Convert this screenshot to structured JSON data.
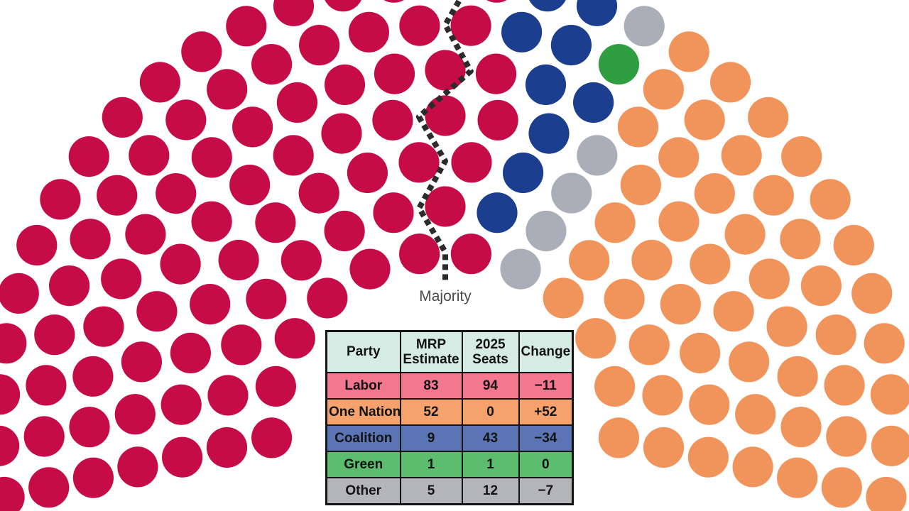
{
  "page": {
    "background_color": "#ffffff"
  },
  "chart_data": {
    "type": "pie",
    "variant": "parliament_hemicycle_seat_plot",
    "title": "",
    "total_seats": 150,
    "majority_label": "Majority",
    "legend_position": "none",
    "grid": false,
    "order_left_to_right": [
      "Labor",
      "Coalition",
      "Green",
      "Other",
      "One Nation"
    ],
    "series": [
      {
        "name": "Labor",
        "seats": 83,
        "dot_color": "#c60c47"
      },
      {
        "name": "Coalition",
        "seats": 9,
        "dot_color": "#1c3e8e"
      },
      {
        "name": "Green",
        "seats": 1,
        "dot_color": "#2e9e40"
      },
      {
        "name": "Other",
        "seats": 5,
        "dot_color": "#a9aeb9"
      },
      {
        "name": "One Nation",
        "seats": 52,
        "dot_color": "#f1945c"
      }
    ],
    "majority_line_color": "#2b2b2b"
  },
  "table": {
    "headers": [
      "Party",
      "MRP Estimate",
      "2025 Seats",
      "Change"
    ],
    "header_bg": "#d7ebe5",
    "rows": [
      {
        "party": "Labor",
        "mrp_estimate": "83",
        "seats_2025": "94",
        "change": "−11",
        "row_color": "#f2778f"
      },
      {
        "party": "One Nation",
        "mrp_estimate": "52",
        "seats_2025": "0",
        "change": "+52",
        "row_color": "#f5a26c"
      },
      {
        "party": "Coalition",
        "mrp_estimate": "9",
        "seats_2025": "43",
        "change": "−34",
        "row_color": "#5a74b4"
      },
      {
        "party": "Green",
        "mrp_estimate": "1",
        "seats_2025": "1",
        "change": "0",
        "row_color": "#5dbd6e"
      },
      {
        "party": "Other",
        "mrp_estimate": "5",
        "seats_2025": "12",
        "change": "−7",
        "row_color": "#b3b5b9"
      }
    ]
  }
}
